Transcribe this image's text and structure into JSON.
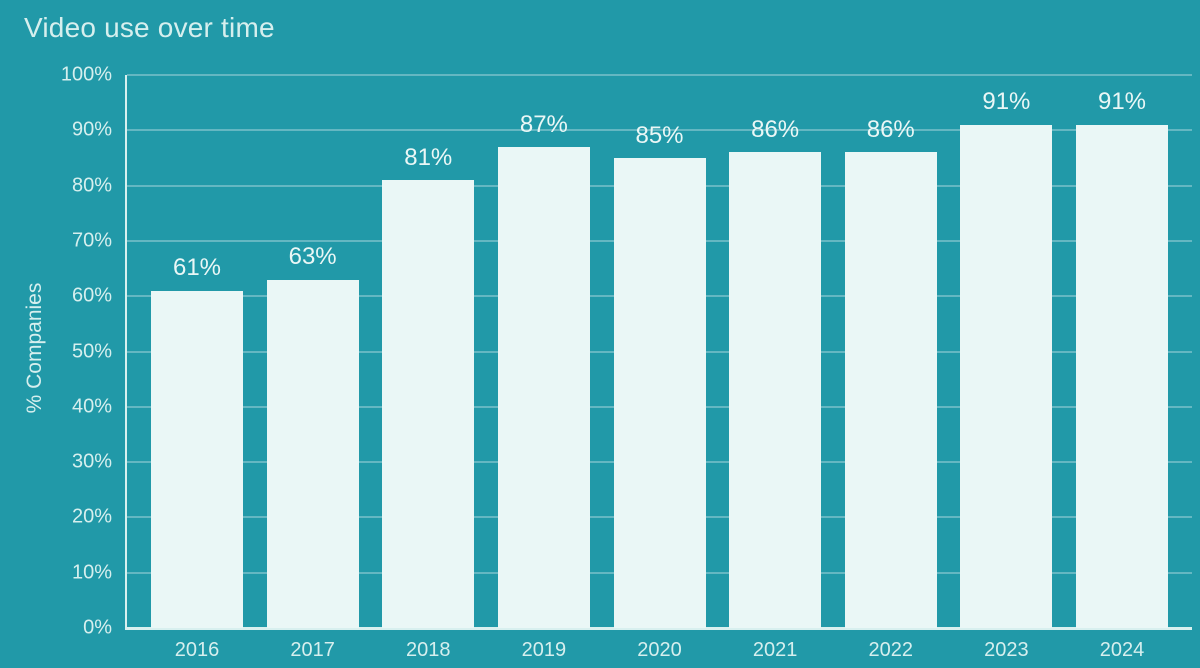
{
  "chart_data": {
    "type": "bar",
    "title": "Video use over time",
    "xlabel": "",
    "ylabel": "% Companies",
    "categories": [
      "2016",
      "2017",
      "2018",
      "2019",
      "2020",
      "2021",
      "2022",
      "2023",
      "2024"
    ],
    "values": [
      61,
      63,
      81,
      87,
      85,
      86,
      86,
      91,
      91
    ],
    "bar_labels": [
      "61%",
      "63%",
      "81%",
      "87%",
      "85%",
      "86%",
      "86%",
      "91%",
      "91%"
    ],
    "y_tick_labels": [
      "0%",
      "10%",
      "20%",
      "30%",
      "40%",
      "50%",
      "60%",
      "70%",
      "80%",
      "90%",
      "100%"
    ],
    "ylim": [
      0,
      100
    ],
    "grid": "horizontal",
    "legend": "none",
    "colors": {
      "background": "#2199a8",
      "bar": "#eaf7f6",
      "gridline": "rgba(255,255,255,0.30)",
      "axis": "#d8f0ef",
      "tick_text": "#d6efee",
      "value_text": "#eaf7f6"
    }
  }
}
